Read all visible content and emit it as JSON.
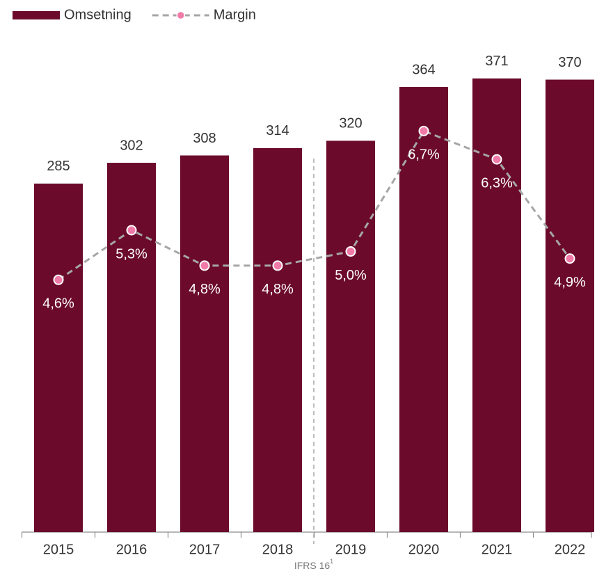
{
  "chart_data": {
    "type": "bar-line",
    "categories": [
      "2015",
      "2016",
      "2017",
      "2018",
      "2019",
      "2020",
      "2021",
      "2022"
    ],
    "series": [
      {
        "name": "Omsetning",
        "type": "bar",
        "color": "#6b0a2b",
        "values": [
          285,
          302,
          308,
          314,
          320,
          364,
          371,
          370
        ]
      },
      {
        "name": "Margin",
        "type": "line",
        "axis": "y2",
        "color": "#a6a6a6",
        "marker_color": "#f07ba8",
        "values": [
          4.6,
          5.3,
          4.8,
          4.8,
          5.0,
          6.7,
          6.3,
          4.9
        ],
        "value_labels": [
          "4,6%",
          "5,3%",
          "4,8%",
          "4,8%",
          "5,0%",
          "6,7%",
          "6,3%",
          "4,9%"
        ]
      }
    ],
    "ylim": [
      0,
      401
    ],
    "y2lim": [
      1.04,
      7.96
    ],
    "legend": "top-left",
    "annotation": {
      "text": "IFRS 16",
      "sup": "1"
    }
  }
}
